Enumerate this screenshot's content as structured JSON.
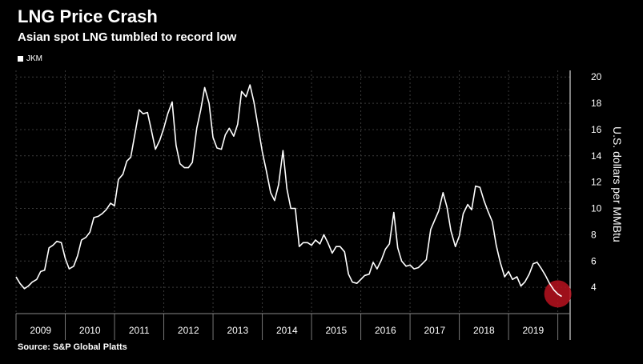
{
  "header": {
    "title": "LNG Price Crash",
    "subtitle": "Asian spot LNG tumbled to record low"
  },
  "legend": {
    "label": "JKM"
  },
  "footer": {
    "source": "Source: S&P Global Platts"
  },
  "colors": {
    "background": "#000000",
    "line": "#ffffff",
    "highlight": "#b8121f"
  },
  "chart_data": {
    "type": "line",
    "title": "LNG Price Crash",
    "subtitle": "Asian spot LNG tumbled to record low",
    "xlabel": "",
    "ylabel": "U.S. dollars per MMBtu",
    "ylim": [
      2,
      20.5
    ],
    "xlim": [
      2009.0,
      2020.25
    ],
    "yticks": [
      4,
      6,
      8,
      10,
      12,
      14,
      16,
      18,
      20
    ],
    "xticks": [
      "2009",
      "2010",
      "2011",
      "2012",
      "2013",
      "2014",
      "2015",
      "2016",
      "2017",
      "2018",
      "2019"
    ],
    "grid": true,
    "y_axis_side": "right",
    "legend_position": "top-left",
    "series": [
      {
        "name": "JKM",
        "x": [
          2009.0,
          2009.08,
          2009.17,
          2009.25,
          2009.33,
          2009.42,
          2009.5,
          2009.58,
          2009.67,
          2009.75,
          2009.83,
          2009.92,
          2010.0,
          2010.08,
          2010.17,
          2010.25,
          2010.33,
          2010.42,
          2010.5,
          2010.58,
          2010.67,
          2010.75,
          2010.83,
          2010.92,
          2011.0,
          2011.08,
          2011.17,
          2011.25,
          2011.33,
          2011.42,
          2011.5,
          2011.58,
          2011.67,
          2011.75,
          2011.83,
          2011.92,
          2012.0,
          2012.08,
          2012.17,
          2012.25,
          2012.33,
          2012.42,
          2012.5,
          2012.58,
          2012.67,
          2012.75,
          2012.83,
          2012.92,
          2013.0,
          2013.08,
          2013.17,
          2013.25,
          2013.33,
          2013.42,
          2013.5,
          2013.58,
          2013.67,
          2013.75,
          2013.83,
          2013.92,
          2014.0,
          2014.08,
          2014.17,
          2014.25,
          2014.33,
          2014.42,
          2014.5,
          2014.58,
          2014.67,
          2014.75,
          2014.83,
          2014.92,
          2015.0,
          2015.08,
          2015.17,
          2015.25,
          2015.33,
          2015.42,
          2015.5,
          2015.58,
          2015.67,
          2015.75,
          2015.83,
          2015.92,
          2016.0,
          2016.08,
          2016.17,
          2016.25,
          2016.33,
          2016.42,
          2016.5,
          2016.58,
          2016.67,
          2016.75,
          2016.83,
          2016.92,
          2017.0,
          2017.08,
          2017.17,
          2017.25,
          2017.33,
          2017.42,
          2017.5,
          2017.58,
          2017.67,
          2017.75,
          2017.83,
          2017.92,
          2018.0,
          2018.08,
          2018.17,
          2018.25,
          2018.33,
          2018.42,
          2018.5,
          2018.58,
          2018.67,
          2018.75,
          2018.83,
          2018.92,
          2019.0,
          2019.08,
          2019.17,
          2019.25,
          2019.33,
          2019.42,
          2019.5,
          2019.58,
          2019.67,
          2019.75,
          2019.83,
          2019.92,
          2020.0,
          2020.08
        ],
        "y": [
          4.8,
          4.3,
          3.9,
          4.1,
          4.4,
          4.6,
          5.2,
          5.3,
          7.0,
          7.2,
          7.5,
          7.4,
          6.2,
          5.4,
          5.6,
          6.4,
          7.6,
          7.8,
          8.2,
          9.3,
          9.4,
          9.6,
          9.9,
          10.4,
          10.2,
          12.2,
          12.6,
          13.6,
          13.9,
          15.8,
          17.5,
          17.2,
          17.3,
          15.9,
          14.5,
          15.2,
          16.1,
          17.2,
          18.1,
          14.8,
          13.4,
          13.1,
          13.1,
          13.5,
          16.1,
          17.5,
          19.2,
          18.0,
          15.4,
          14.6,
          14.5,
          15.6,
          16.1,
          15.5,
          16.4,
          18.9,
          18.5,
          19.4,
          18.1,
          16.1,
          14.3,
          12.9,
          11.2,
          10.6,
          11.8,
          14.4,
          11.5,
          10.0,
          10.0,
          7.1,
          7.4,
          7.4,
          7.2,
          7.6,
          7.3,
          8.0,
          7.4,
          6.6,
          7.1,
          7.1,
          6.7,
          5.0,
          4.4,
          4.3,
          4.6,
          4.9,
          5.0,
          5.9,
          5.4,
          6.1,
          6.9,
          7.3,
          9.7,
          7.0,
          6.0,
          5.6,
          5.7,
          5.4,
          5.5,
          5.8,
          6.1,
          8.4,
          9.1,
          9.8,
          11.2,
          10.1,
          8.3,
          7.1,
          7.9,
          9.6,
          10.3,
          9.9,
          11.7,
          11.6,
          10.6,
          9.8,
          9.0,
          7.2,
          5.9,
          4.8,
          5.2,
          4.6,
          4.8,
          4.1,
          4.4,
          5.0,
          5.8,
          5.9,
          5.4,
          4.9,
          4.3,
          3.8,
          3.5,
          3.3
        ]
      }
    ],
    "annotations": [
      {
        "type": "highlight-marker",
        "x": 2020.0,
        "y": 3.5
      }
    ]
  }
}
